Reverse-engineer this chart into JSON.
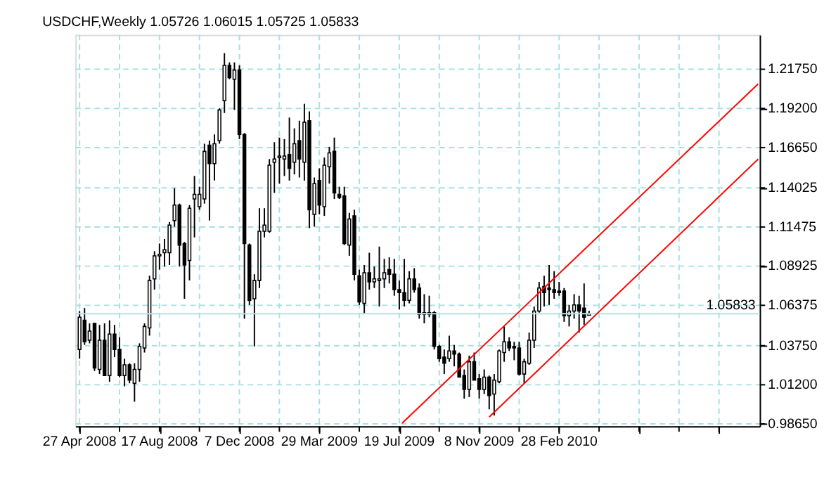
{
  "chart_data": {
    "type": "candlestick",
    "title": "USDCHF,Weekly  1.05726 1.06015 1.05725 1.05833",
    "x": [
      "2008-04-27",
      "2008-05-04",
      "2008-05-11",
      "2008-05-18",
      "2008-05-25",
      "2008-06-01",
      "2008-06-08",
      "2008-06-15",
      "2008-06-22",
      "2008-06-29",
      "2008-07-06",
      "2008-07-13",
      "2008-07-20",
      "2008-07-27",
      "2008-08-03",
      "2008-08-10",
      "2008-08-17",
      "2008-08-24",
      "2008-08-31",
      "2008-09-07",
      "2008-09-14",
      "2008-09-21",
      "2008-09-28",
      "2008-10-05",
      "2008-10-12",
      "2008-10-19",
      "2008-10-26",
      "2008-11-02",
      "2008-11-09",
      "2008-11-16",
      "2008-11-23",
      "2008-11-30",
      "2008-12-07",
      "2008-12-14",
      "2008-12-21",
      "2008-12-28",
      "2009-01-04",
      "2009-01-11",
      "2009-01-18",
      "2009-01-25",
      "2009-02-01",
      "2009-02-08",
      "2009-02-15",
      "2009-02-22",
      "2009-03-01",
      "2009-03-08",
      "2009-03-15",
      "2009-03-22",
      "2009-03-29",
      "2009-04-05",
      "2009-04-12",
      "2009-04-19",
      "2009-04-26",
      "2009-05-03",
      "2009-05-10",
      "2009-05-17",
      "2009-05-24",
      "2009-05-31",
      "2009-06-07",
      "2009-06-14",
      "2009-06-21",
      "2009-06-28",
      "2009-07-05",
      "2009-07-12",
      "2009-07-19",
      "2009-07-26",
      "2009-08-02",
      "2009-08-09",
      "2009-08-16",
      "2009-08-23",
      "2009-08-30",
      "2009-09-06",
      "2009-09-13",
      "2009-09-20",
      "2009-09-27",
      "2009-10-04",
      "2009-10-11",
      "2009-10-18",
      "2009-10-25",
      "2009-11-01",
      "2009-11-08",
      "2009-11-15",
      "2009-11-22",
      "2009-11-29",
      "2009-12-06",
      "2009-12-13",
      "2009-12-20",
      "2009-12-27",
      "2010-01-03",
      "2010-01-10",
      "2010-01-17",
      "2010-01-24",
      "2010-01-31",
      "2010-02-07",
      "2010-02-14",
      "2010-02-21",
      "2010-02-28",
      "2010-03-07",
      "2010-03-14",
      "2010-03-21",
      "2010-03-28",
      "2010-04-04",
      "2010-04-11"
    ],
    "ohlc": [
      [
        1.035,
        1.06,
        1.029,
        1.056
      ],
      [
        1.054,
        1.062,
        1.038,
        1.04
      ],
      [
        1.041,
        1.052,
        1.039,
        1.047
      ],
      [
        1.052,
        1.052,
        1.021,
        1.023
      ],
      [
        1.022,
        1.051,
        1.019,
        1.041
      ],
      [
        1.041,
        1.052,
        1.018,
        1.018
      ],
      [
        1.018,
        1.054,
        1.014,
        1.045
      ],
      [
        1.045,
        1.051,
        1.03,
        1.035
      ],
      [
        1.035,
        1.043,
        1.017,
        1.018
      ],
      [
        1.018,
        1.029,
        1.011,
        1.025
      ],
      [
        1.025,
        1.026,
        1.013,
        1.015
      ],
      [
        1.013,
        1.026,
        1.001,
        1.022
      ],
      [
        1.022,
        1.039,
        1.014,
        1.037
      ],
      [
        1.036,
        1.052,
        1.033,
        1.05
      ],
      [
        1.049,
        1.083,
        1.044,
        1.08
      ],
      [
        1.081,
        1.099,
        1.074,
        1.096
      ],
      [
        1.096,
        1.104,
        1.087,
        1.097
      ],
      [
        1.098,
        1.107,
        1.089,
        1.1
      ],
      [
        1.098,
        1.118,
        1.09,
        1.116
      ],
      [
        1.119,
        1.14,
        1.115,
        1.129
      ],
      [
        1.129,
        1.13,
        1.089,
        1.103
      ],
      [
        1.104,
        1.105,
        1.068,
        1.09
      ],
      [
        1.093,
        1.129,
        1.08,
        1.127
      ],
      [
        1.133,
        1.148,
        1.108,
        1.136
      ],
      [
        1.128,
        1.141,
        1.126,
        1.136
      ],
      [
        1.133,
        1.169,
        1.13,
        1.164
      ],
      [
        1.168,
        1.171,
        1.119,
        1.156
      ],
      [
        1.156,
        1.175,
        1.145,
        1.169
      ],
      [
        1.171,
        1.192,
        1.169,
        1.191
      ],
      [
        1.197,
        1.228,
        1.189,
        1.22
      ],
      [
        1.22,
        1.222,
        1.211,
        1.212
      ],
      [
        1.211,
        1.222,
        1.191,
        1.217
      ],
      [
        1.217,
        1.22,
        1.172,
        1.175
      ],
      [
        1.175,
        1.176,
        1.055,
        1.104
      ],
      [
        1.103,
        1.104,
        1.064,
        1.067
      ],
      [
        1.068,
        1.084,
        1.037,
        1.08
      ],
      [
        1.08,
        1.127,
        1.075,
        1.112
      ],
      [
        1.112,
        1.127,
        1.108,
        1.116
      ],
      [
        1.112,
        1.159,
        1.111,
        1.155
      ],
      [
        1.157,
        1.17,
        1.137,
        1.159
      ],
      [
        1.16,
        1.173,
        1.143,
        1.161
      ],
      [
        1.159,
        1.172,
        1.148,
        1.161
      ],
      [
        1.162,
        1.186,
        1.145,
        1.153
      ],
      [
        1.157,
        1.179,
        1.149,
        1.169
      ],
      [
        1.171,
        1.184,
        1.147,
        1.159
      ],
      [
        1.157,
        1.195,
        1.145,
        1.183
      ],
      [
        1.184,
        1.19,
        1.114,
        1.126
      ],
      [
        1.123,
        1.147,
        1.115,
        1.143
      ],
      [
        1.145,
        1.153,
        1.123,
        1.129
      ],
      [
        1.128,
        1.16,
        1.122,
        1.155
      ],
      [
        1.154,
        1.167,
        1.143,
        1.163
      ],
      [
        1.164,
        1.173,
        1.133,
        1.137
      ],
      [
        1.136,
        1.141,
        1.133,
        1.134
      ],
      [
        1.135,
        1.141,
        1.103,
        1.104
      ],
      [
        1.103,
        1.124,
        1.096,
        1.12
      ],
      [
        1.122,
        1.126,
        1.08,
        1.084
      ],
      [
        1.083,
        1.087,
        1.064,
        1.066
      ],
      [
        1.065,
        1.09,
        1.058,
        1.085
      ],
      [
        1.085,
        1.098,
        1.074,
        1.079
      ],
      [
        1.079,
        1.089,
        1.075,
        1.081
      ],
      [
        1.08,
        1.102,
        1.063,
        1.081
      ],
      [
        1.081,
        1.094,
        1.075,
        1.085
      ],
      [
        1.087,
        1.095,
        1.078,
        1.084
      ],
      [
        1.084,
        1.094,
        1.07,
        1.074
      ],
      [
        1.074,
        1.08,
        1.061,
        1.072
      ],
      [
        1.072,
        1.094,
        1.063,
        1.067
      ],
      [
        1.067,
        1.086,
        1.065,
        1.081
      ],
      [
        1.081,
        1.088,
        1.072,
        1.074
      ],
      [
        1.075,
        1.078,
        1.055,
        1.058
      ],
      [
        1.058,
        1.071,
        1.052,
        1.059
      ],
      [
        1.059,
        1.07,
        1.056,
        1.058
      ],
      [
        1.059,
        1.06,
        1.035,
        1.037
      ],
      [
        1.037,
        1.038,
        1.027,
        1.029
      ],
      [
        1.03,
        1.035,
        1.019,
        1.026
      ],
      [
        1.029,
        1.044,
        1.027,
        1.034
      ],
      [
        1.034,
        1.038,
        1.024,
        1.032
      ],
      [
        1.032,
        1.033,
        1.017,
        1.017
      ],
      [
        1.018,
        1.022,
        1.003,
        1.009
      ],
      [
        1.009,
        1.031,
        1.004,
        1.027
      ],
      [
        1.027,
        1.033,
        1.015,
        1.015
      ],
      [
        1.016,
        1.019,
        1.003,
        1.009
      ],
      [
        1.009,
        1.022,
        1.006,
        1.017
      ],
      [
        1.017,
        1.018,
        0.996,
        1.005
      ],
      [
        1.006,
        1.019,
        0.992,
        1.015
      ],
      [
        1.014,
        1.035,
        1.013,
        1.034
      ],
      [
        1.033,
        1.05,
        1.027,
        1.04
      ],
      [
        1.04,
        1.043,
        1.034,
        1.036
      ],
      [
        1.037,
        1.04,
        1.028,
        1.036
      ],
      [
        1.036,
        1.04,
        1.018,
        1.019
      ],
      [
        1.019,
        1.029,
        1.013,
        1.027
      ],
      [
        1.026,
        1.046,
        1.025,
        1.041
      ],
      [
        1.041,
        1.063,
        1.036,
        1.06
      ],
      [
        1.06,
        1.079,
        1.059,
        1.075
      ],
      [
        1.076,
        1.083,
        1.063,
        1.072
      ],
      [
        1.075,
        1.09,
        1.064,
        1.074
      ],
      [
        1.074,
        1.086,
        1.068,
        1.072
      ],
      [
        1.073,
        1.079,
        1.07,
        1.072
      ],
      [
        1.073,
        1.075,
        1.053,
        1.057
      ],
      [
        1.057,
        1.064,
        1.05,
        1.06
      ],
      [
        1.06,
        1.071,
        1.055,
        1.064
      ],
      [
        1.064,
        1.07,
        1.046,
        1.06
      ],
      [
        1.062,
        1.078,
        1.051,
        1.056
      ],
      [
        1.05726,
        1.06015,
        1.05725,
        1.05833
      ]
    ],
    "series": [
      {
        "type": "line",
        "color": "#ff0000",
        "x": [
          "2009-07-23",
          "2010-12-04"
        ],
        "values": [
          0.987,
          1.208
        ]
      },
      {
        "type": "line",
        "color": "#ff0000",
        "x": [
          "2009-11-22",
          "2010-12-04"
        ],
        "values": [
          0.991,
          1.159
        ]
      }
    ],
    "xlim": [
      "2008-04-21",
      "2010-12-06"
    ],
    "xticks": [
      {
        "value": "2008-04-27",
        "label": "27 Apr 2008"
      },
      {
        "value": "2008-06-22",
        "label": null
      },
      {
        "value": "2008-08-17",
        "label": "17 Aug 2008"
      },
      {
        "value": "2008-10-12",
        "label": null
      },
      {
        "value": "2008-12-07",
        "label": "7 Dec 2008"
      },
      {
        "value": "2009-02-01",
        "label": null
      },
      {
        "value": "2009-03-29",
        "label": "29 Mar 2009"
      },
      {
        "value": "2009-05-24",
        "label": null
      },
      {
        "value": "2009-07-19",
        "label": "19 Jul 2009"
      },
      {
        "value": "2009-09-13",
        "label": null
      },
      {
        "value": "2009-11-08",
        "label": "8 Nov 2009"
      },
      {
        "value": "2010-01-03",
        "label": null
      },
      {
        "value": "2010-02-28",
        "label": "28 Feb 2010"
      },
      {
        "value": "2010-04-25",
        "label": null
      },
      {
        "value": "2010-06-20",
        "label": null
      },
      {
        "value": "2010-08-15",
        "label": null
      },
      {
        "value": "2010-10-10",
        "label": null
      }
    ],
    "ylim": [
      0.985,
      1.2399
    ],
    "yticks": [
      {
        "value": 0.9865,
        "label": "0.98650"
      },
      {
        "value": 1.012,
        "label": "1.01200"
      },
      {
        "value": 1.0375,
        "label": "1.03750"
      },
      {
        "value": 1.06375,
        "label": "1.06375"
      },
      {
        "value": 1.08925,
        "label": "1.08925"
      },
      {
        "value": 1.11475,
        "label": "1.11475"
      },
      {
        "value": 1.14025,
        "label": "1.14025"
      },
      {
        "value": 1.1665,
        "label": "1.16650"
      },
      {
        "value": 1.192,
        "label": "1.19200"
      },
      {
        "value": 1.2175,
        "label": "1.21750"
      }
    ],
    "grid": true,
    "ref_lines": [
      {
        "axis": "y",
        "value": 1.05833,
        "label": "1.05833",
        "color": "#b0e4e4"
      }
    ]
  }
}
